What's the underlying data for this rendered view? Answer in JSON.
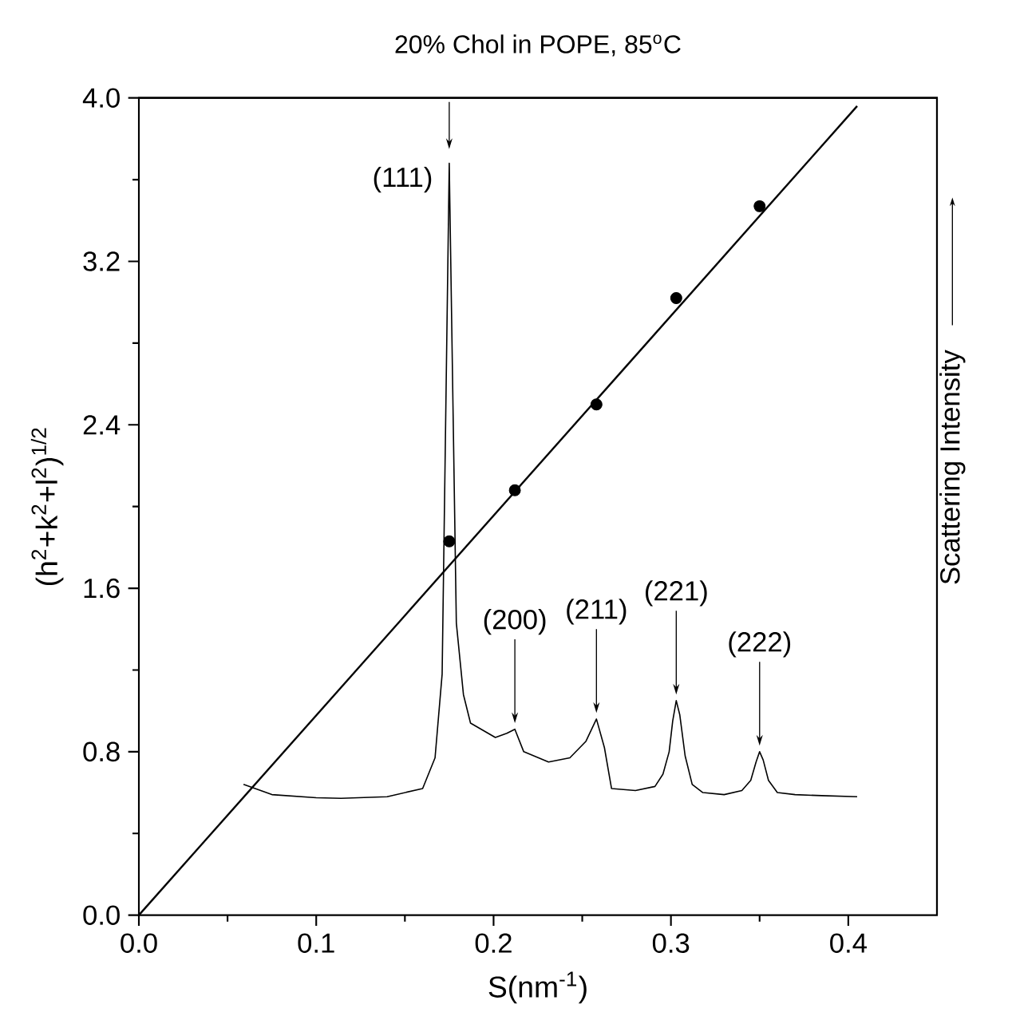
{
  "chart_data": {
    "type": "scatter",
    "title": "20% Chol in POPE, 85$^{o}$C",
    "xlabel": "S(nm$^{-1}$)",
    "ylabel": "(h$^{2}$+k$^{2}$+l$^{2}$)$^{1/2}$",
    "y2label": "Scattering Intensity",
    "xlim": [
      0,
      0.45
    ],
    "ylim": [
      0,
      4.0
    ],
    "xticks": [
      {
        "value": 0,
        "label": "0.0"
      },
      {
        "value": 0.1,
        "label": "0.1"
      },
      {
        "value": 0.2,
        "label": "0.2"
      },
      {
        "value": 0.3,
        "label": "0.3"
      },
      {
        "value": 0.4,
        "label": "0.4"
      }
    ],
    "yticks": [
      {
        "value": 0,
        "label": "0.0"
      },
      {
        "value": 0.8,
        "label": "0.8"
      },
      {
        "value": 1.6,
        "label": "1.6"
      },
      {
        "value": 2.4,
        "label": "2.4"
      },
      {
        "value": 3.2,
        "label": "3.2"
      },
      {
        "value": 4.0,
        "label": "4.0"
      }
    ],
    "series": [
      {
        "type": "line",
        "color": "#000000",
        "marker": "none",
        "x": [
          0,
          0.405
        ],
        "values": [
          0,
          3.96
        ]
      },
      {
        "color": "#000000",
        "marker": "circle",
        "x": [
          0.175,
          0.212,
          0.258,
          0.303,
          0.35
        ],
        "values": [
          1.83,
          2.08,
          2.5,
          3.02,
          3.47
        ]
      },
      {
        "type": "line",
        "color": "#000000",
        "marker": "none",
        "x": [
          0.059,
          0.075,
          0.1,
          0.114,
          0.14,
          0.16,
          0.167,
          0.171,
          0.175,
          0.179,
          0.183,
          0.187,
          0.201,
          0.2075,
          0.212,
          0.217,
          0.231,
          0.243,
          0.252,
          0.258,
          0.2625,
          0.2665,
          0.28,
          0.291,
          0.2955,
          0.299,
          0.301,
          0.303,
          0.305,
          0.308,
          0.312,
          0.318,
          0.33,
          0.34,
          0.345,
          0.348,
          0.35,
          0.352,
          0.355,
          0.36,
          0.37,
          0.385,
          0.405
        ],
        "values": [
          0.64,
          0.59,
          0.575,
          0.572,
          0.58,
          0.62,
          0.77,
          1.18,
          3.68,
          1.43,
          1.08,
          0.94,
          0.87,
          0.89,
          0.91,
          0.8,
          0.75,
          0.77,
          0.85,
          0.96,
          0.82,
          0.62,
          0.61,
          0.63,
          0.69,
          0.8,
          0.95,
          1.05,
          0.98,
          0.78,
          0.64,
          0.6,
          0.59,
          0.61,
          0.66,
          0.75,
          0.8,
          0.76,
          0.66,
          0.6,
          0.59,
          0.585,
          0.58
        ]
      }
    ],
    "annotations": [
      {
        "text": "(111)",
        "x": 0.175,
        "y": 3.68
      },
      {
        "text": "(200)",
        "x": 0.212,
        "y": 0.91
      },
      {
        "text": "(211)",
        "x": 0.258,
        "y": 0.96
      },
      {
        "text": "(221)",
        "x": 0.303,
        "y": 1.05
      },
      {
        "text": "(222)",
        "x": 0.35,
        "y": 0.8
      }
    ]
  }
}
